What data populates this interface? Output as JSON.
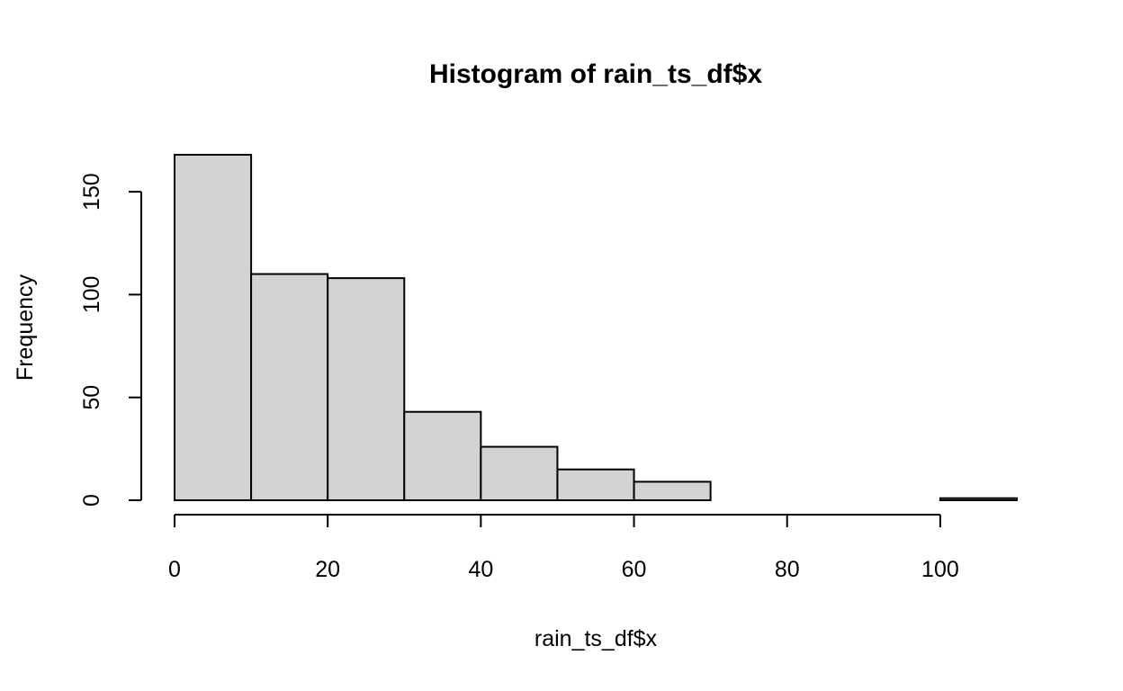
{
  "chart_data": {
    "type": "bar",
    "title": "Histogram of rain_ts_df$x",
    "xlabel": "rain_ts_df$x",
    "ylabel": "Frequency",
    "bins": [
      {
        "from": 0,
        "to": 10,
        "count": 168
      },
      {
        "from": 10,
        "to": 20,
        "count": 110
      },
      {
        "from": 20,
        "to": 30,
        "count": 108
      },
      {
        "from": 30,
        "to": 40,
        "count": 43
      },
      {
        "from": 40,
        "to": 50,
        "count": 26
      },
      {
        "from": 50,
        "to": 60,
        "count": 15
      },
      {
        "from": 60,
        "to": 70,
        "count": 9
      },
      {
        "from": 70,
        "to": 80,
        "count": 0
      },
      {
        "from": 80,
        "to": 90,
        "count": 0
      },
      {
        "from": 90,
        "to": 100,
        "count": 0
      },
      {
        "from": 100,
        "to": 110,
        "count": 1
      }
    ],
    "xlim": [
      0,
      110
    ],
    "ylim": [
      0,
      168
    ],
    "xticks": [
      0,
      20,
      40,
      60,
      80,
      100
    ],
    "yticks": [
      0,
      50,
      100,
      150
    ],
    "bar_fill": "#d3d3d3",
    "bar_stroke": "#000000",
    "grid": false,
    "legend": "none"
  }
}
